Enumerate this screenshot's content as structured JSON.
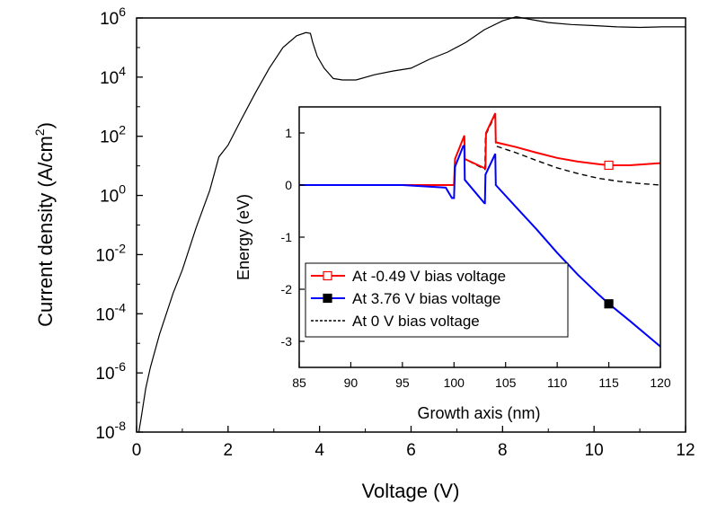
{
  "chart_data": [
    {
      "type": "line",
      "scale": "log-y",
      "xlabel": "Voltage (V)",
      "ylabel": "Current density (A/cm²)",
      "xlim": [
        0,
        12
      ],
      "ylim": [
        1e-08,
        1000000.0
      ],
      "xticks": [
        0,
        2,
        4,
        6,
        8,
        10,
        12
      ],
      "yticks": [
        {
          "value": 1e-08,
          "base": "10",
          "exp": "-8"
        },
        {
          "value": 1e-06,
          "base": "10",
          "exp": "-6"
        },
        {
          "value": 0.0001,
          "base": "10",
          "exp": "-4"
        },
        {
          "value": 0.01,
          "base": "10",
          "exp": "-2"
        },
        {
          "value": 1,
          "base": "10",
          "exp": "0"
        },
        {
          "value": 100.0,
          "base": "10",
          "exp": "2"
        },
        {
          "value": 10000.0,
          "base": "10",
          "exp": "4"
        },
        {
          "value": 1000000.0,
          "base": "10",
          "exp": "6"
        }
      ],
      "grid": false,
      "series": [
        {
          "color": "#000000",
          "x": [
            0.05,
            0.1,
            0.2,
            0.3,
            0.5,
            0.8,
            1.0,
            1.3,
            1.6,
            1.8,
            2.0,
            2.3,
            2.6,
            2.9,
            3.2,
            3.5,
            3.7,
            3.8,
            3.85,
            3.95,
            4.1,
            4.3,
            4.5,
            4.8,
            5.2,
            5.6,
            6.0,
            6.4,
            6.8,
            7.2,
            7.6,
            8.0,
            8.3,
            8.6,
            9.0,
            9.5,
            10.0,
            10.5,
            11.0,
            11.5,
            12.0
          ],
          "y": [
            1e-08,
            3e-08,
            3e-07,
            1.5e-06,
            2e-05,
            0.0005,
            0.003,
            0.08,
            1.5,
            20,
            50,
            400,
            3000,
            20000,
            100000,
            250000,
            320000,
            300000,
            150000,
            50000,
            20000,
            9000,
            8000,
            8000,
            12000,
            16000,
            20000,
            40000,
            70000,
            150000,
            400000,
            800000,
            1100000,
            900000,
            700000,
            600000,
            550000,
            500000,
            480000,
            500000,
            500000
          ]
        }
      ]
    },
    {
      "type": "line",
      "xlabel": "Growth axis (nm)",
      "ylabel": "Energy (eV)",
      "xlim": [
        85,
        120
      ],
      "ylim": [
        -3.5,
        1.5
      ],
      "xticks": [
        85,
        90,
        95,
        100,
        105,
        110,
        115,
        120
      ],
      "yticks": [
        1,
        0,
        -1,
        -2,
        -3
      ],
      "grid": false,
      "legend_position": "bottom-left",
      "series": [
        {
          "name": "At -0.49 V bias voltage",
          "color": "#ff0000",
          "style": "solid",
          "marker": "open-square",
          "marker_x": 115,
          "x": [
            85,
            99.7,
            100.0,
            100.1,
            101.0,
            101.05,
            103.0,
            103.05,
            103.1,
            104.0,
            104.05,
            106,
            108,
            110,
            112,
            114,
            115,
            117,
            120
          ],
          "y": [
            0,
            0,
            0,
            0.5,
            0.95,
            0.5,
            0.32,
            0.32,
            1.0,
            1.38,
            0.82,
            0.73,
            0.62,
            0.52,
            0.45,
            0.4,
            0.38,
            0.38,
            0.42
          ]
        },
        {
          "name": "At 3.76 V bias voltage",
          "color": "#0000ff",
          "style": "solid",
          "marker": "filled-square",
          "marker_x": 115,
          "x": [
            85,
            95,
            99.2,
            99.8,
            100.0,
            100.1,
            100.9,
            101.0,
            101.05,
            102.95,
            103.0,
            103.05,
            104.0,
            104.05,
            106,
            108,
            110,
            112,
            114,
            115,
            117,
            120
          ],
          "y": [
            0,
            0,
            -0.05,
            -0.25,
            -0.25,
            0.35,
            0.75,
            0.75,
            0.1,
            -0.35,
            -0.35,
            0.2,
            0.6,
            0.0,
            -0.42,
            -0.85,
            -1.3,
            -1.72,
            -2.1,
            -2.28,
            -2.6,
            -3.1
          ]
        },
        {
          "name": "At 0 V bias voltage",
          "color": "#000000",
          "style": "dashed",
          "x": [
            85,
            99.7,
            100.0,
            100.1,
            101.0,
            101.05,
            103.0,
            103.05,
            104.0,
            104.05,
            106,
            108,
            110,
            112,
            114,
            116,
            118,
            120
          ],
          "y": [
            0,
            0,
            0,
            0.5,
            0.95,
            0.5,
            0.3,
            0.95,
            1.35,
            0.75,
            0.62,
            0.47,
            0.33,
            0.22,
            0.13,
            0.07,
            0.03,
            0.0
          ]
        }
      ]
    }
  ]
}
